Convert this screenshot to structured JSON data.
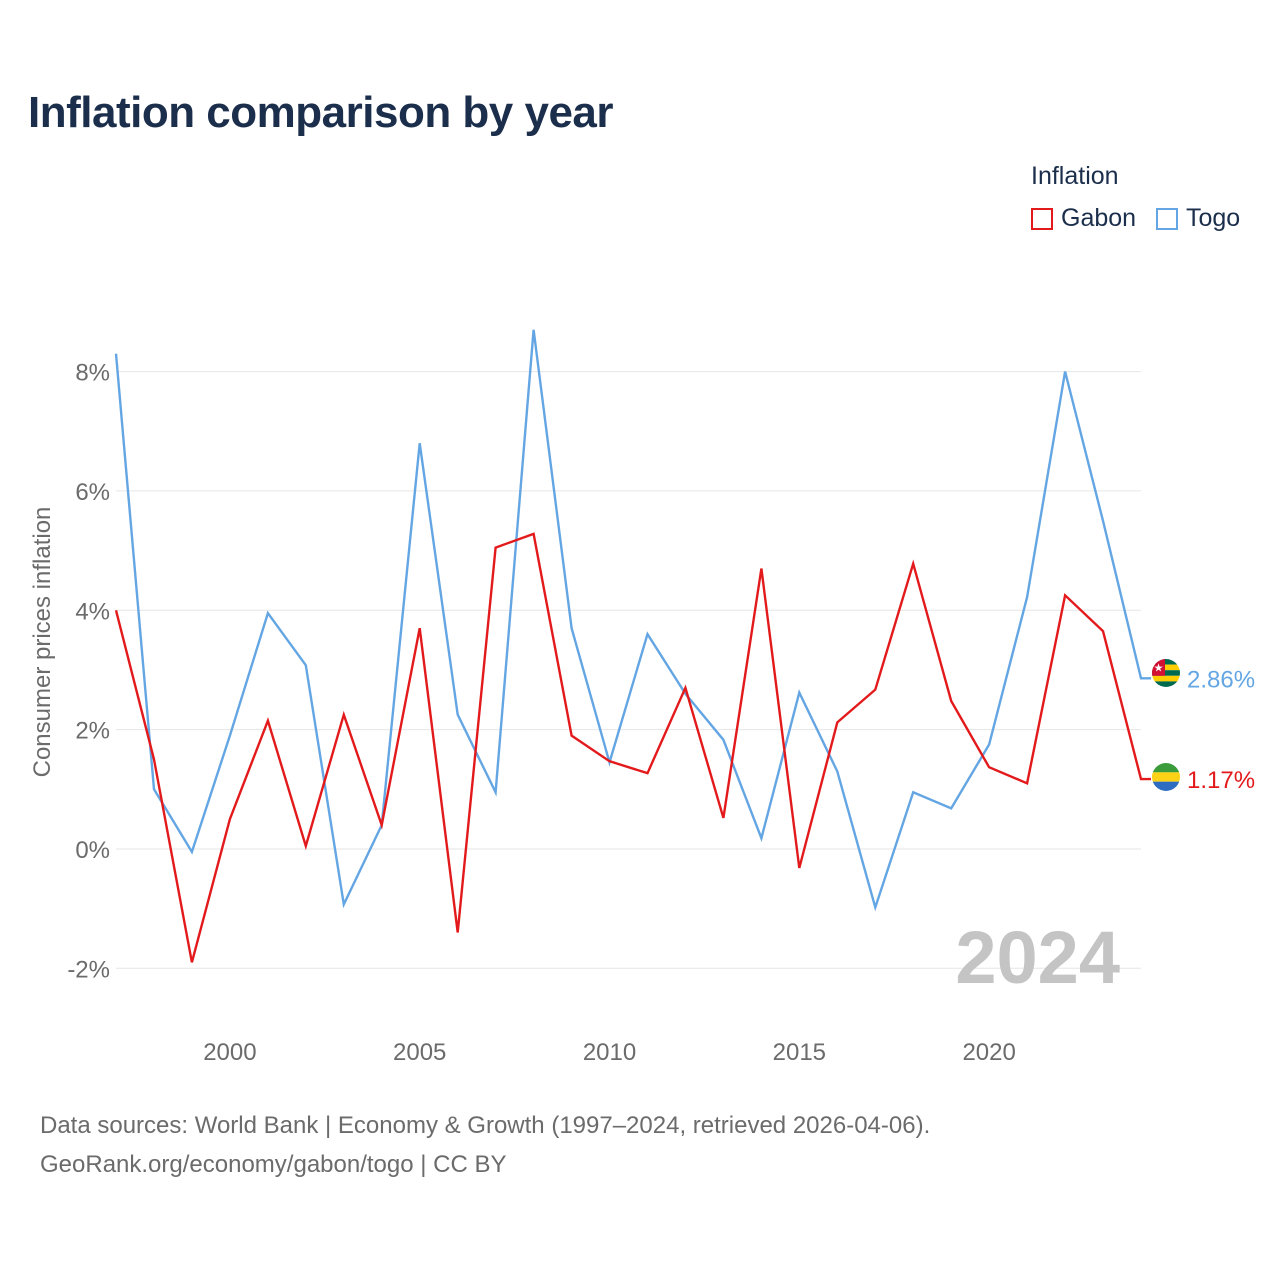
{
  "title": "Inflation comparison by year",
  "legend": {
    "title": "Inflation",
    "items": [
      {
        "label": "Gabon",
        "color": "#e31a1c"
      },
      {
        "label": "Togo",
        "color": "#64a6e3"
      }
    ]
  },
  "footer": {
    "line1": "Data sources: World Bank | Economy & Growth (1997–2024, retrieved 2026-04-06).",
    "line2": "GeoRank.org/economy/gabon/togo | CC BY"
  },
  "chart_data": {
    "type": "line",
    "title": "Inflation comparison by year",
    "ylabel": "Consumer prices inflation",
    "xlabel": "",
    "xlim": [
      1997,
      2024
    ],
    "ylim": [
      -2.9,
      9.3
    ],
    "yticks": [
      -2,
      0,
      2,
      4,
      6,
      8
    ],
    "ytick_labels": [
      "-2%",
      "0%",
      "2%",
      "4%",
      "6%",
      "8%"
    ],
    "xticks": [
      2000,
      2005,
      2010,
      2015,
      2020
    ],
    "xtick_labels": [
      "2000",
      "2005",
      "2010",
      "2015",
      "2020"
    ],
    "year_watermark": "2024",
    "x": [
      1997,
      1998,
      1999,
      2000,
      2001,
      2002,
      2003,
      2004,
      2005,
      2006,
      2007,
      2008,
      2009,
      2010,
      2011,
      2012,
      2013,
      2014,
      2015,
      2016,
      2017,
      2018,
      2019,
      2020,
      2021,
      2022,
      2023,
      2024
    ],
    "series": [
      {
        "name": "Gabon",
        "color": "#e31a1c",
        "end_label": "1.17%",
        "flag": "gabon",
        "values": [
          4.0,
          1.5,
          -1.9,
          0.5,
          2.15,
          0.05,
          2.25,
          0.4,
          3.7,
          -1.4,
          5.05,
          5.28,
          1.9,
          1.47,
          1.27,
          2.7,
          0.52,
          4.7,
          -0.32,
          2.12,
          2.67,
          4.78,
          2.48,
          1.37,
          1.1,
          4.25,
          3.65,
          1.17
        ]
      },
      {
        "name": "Togo",
        "color": "#64a6e3",
        "end_label": "2.86%",
        "flag": "togo",
        "values": [
          8.3,
          1.0,
          -0.05,
          1.9,
          3.95,
          3.08,
          -0.93,
          0.4,
          6.8,
          2.25,
          0.95,
          8.7,
          3.7,
          1.45,
          3.6,
          2.6,
          1.83,
          0.18,
          2.62,
          1.3,
          -0.98,
          0.95,
          0.68,
          1.75,
          4.22,
          8.0,
          5.5,
          2.86
        ]
      }
    ]
  }
}
